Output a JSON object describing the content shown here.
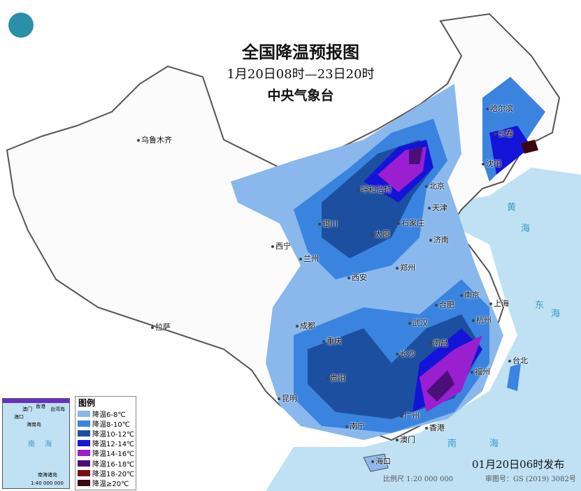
{
  "header": {
    "title": "全国降温预报图",
    "period": "1月20日08时—23日20时",
    "agency": "中央气象台"
  },
  "logo": "cma-logo",
  "colors": {
    "sea": "#bfe1f3",
    "land": "#ffffff",
    "border": "#555555"
  },
  "legend": {
    "title": "图例",
    "items": [
      {
        "label": "降温6-8℃",
        "color": "#8ab8ec"
      },
      {
        "label": "降温8-10℃",
        "color": "#3a84e0"
      },
      {
        "label": "降温10-12℃",
        "color": "#1d4fa0"
      },
      {
        "label": "降温12-14℃",
        "color": "#1414d8"
      },
      {
        "label": "降温14-16℃",
        "color": "#9a1fd0"
      },
      {
        "label": "降温16-18℃",
        "color": "#4a1078"
      },
      {
        "label": "降温18-20℃",
        "color": "#7a0a14"
      },
      {
        "label": "降温≥20℃",
        "color": "#3a0810"
      }
    ]
  },
  "cities": [
    "乌鲁木齐",
    "拉萨",
    "西宁",
    "兰州",
    "银川",
    "呼和浩特",
    "北京",
    "天津",
    "石家庄",
    "太原",
    "济南",
    "郑州",
    "西安",
    "成都",
    "重庆",
    "贵阳",
    "昆明",
    "南宁",
    "广州",
    "香港",
    "澳门",
    "海口",
    "长沙",
    "武汉",
    "南昌",
    "合肥",
    "南京",
    "上海",
    "杭州",
    "福州",
    "台北",
    "沈阳",
    "长春",
    "哈尔滨"
  ],
  "inset": {
    "labels": [
      "澳门",
      "香港",
      "台湾岛",
      "海口",
      "海南岛",
      "南",
      "海",
      "南海诸岛"
    ],
    "scale": "1:40 000 000"
  },
  "sea_labels": [
    "南",
    "海",
    "东",
    "海",
    "黄",
    "海"
  ],
  "footer": {
    "issued": "01月20日06时发布",
    "scale": "比例尺 1:20 000 000",
    "review": "审图号：GS (2019) 3082号"
  }
}
